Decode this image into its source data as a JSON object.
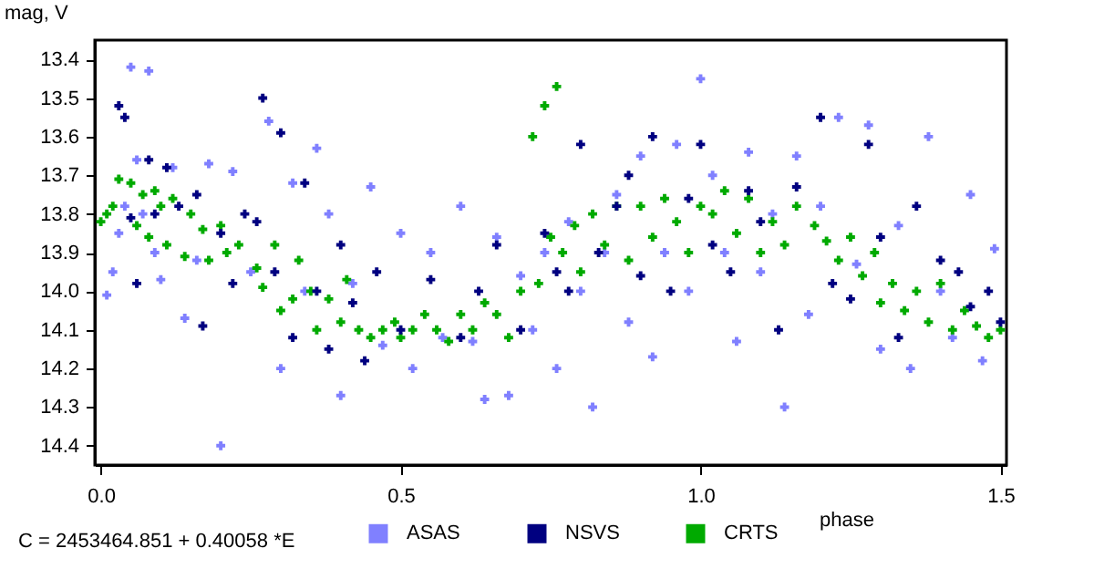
{
  "chart_data": {
    "type": "scatter",
    "xlabel": "phase",
    "ylabel": "mag, V",
    "annotations": [
      "C = 2453464.851 + 0.40058 *E"
    ],
    "xlim": [
      -0.01,
      1.51
    ],
    "ylim": [
      14.45,
      13.35
    ],
    "xticks": [
      {
        "value": 0,
        "label": "0.0"
      },
      0.5,
      {
        "value": 1,
        "label": "1.0"
      },
      1.5
    ],
    "yticks": [
      13.4,
      13.5,
      13.6,
      13.7,
      13.8,
      13.9,
      {
        "value": 14,
        "label": "14.0"
      },
      14.1,
      14.2,
      14.3,
      14.4
    ],
    "grid": false,
    "legend": "bottom",
    "marker": "cross",
    "series": [
      {
        "name": "ASAS",
        "color": "#8080ff",
        "x": [
          0.01,
          0.02,
          0.03,
          0.04,
          0.05,
          0.06,
          0.07,
          0.08,
          0.09,
          0.1,
          0.12,
          0.14,
          0.16,
          0.18,
          0.2,
          0.22,
          0.25,
          0.28,
          0.3,
          0.32,
          0.34,
          0.36,
          0.38,
          0.4,
          0.42,
          0.45,
          0.47,
          0.5,
          0.52,
          0.55,
          0.57,
          0.6,
          0.62,
          0.64,
          0.66,
          0.68,
          0.7,
          0.72,
          0.74,
          0.76,
          0.78,
          0.8,
          0.82,
          0.84,
          0.86,
          0.88,
          0.9,
          0.92,
          0.94,
          0.96,
          0.98,
          1.0,
          1.02,
          1.04,
          1.06,
          1.08,
          1.1,
          1.12,
          1.14,
          1.16,
          1.18,
          1.2,
          1.23,
          1.26,
          1.28,
          1.3,
          1.33,
          1.35,
          1.38,
          1.4,
          1.42,
          1.45,
          1.47,
          1.49
        ],
        "values": [
          14.01,
          13.95,
          13.85,
          13.78,
          13.42,
          13.66,
          13.8,
          13.43,
          13.9,
          13.97,
          13.68,
          14.07,
          13.92,
          13.67,
          14.4,
          13.69,
          13.95,
          13.56,
          14.2,
          13.72,
          14.0,
          13.63,
          13.8,
          14.27,
          13.98,
          13.73,
          14.14,
          13.85,
          14.2,
          13.9,
          14.12,
          13.78,
          14.13,
          14.28,
          13.86,
          14.27,
          13.96,
          14.1,
          13.9,
          14.2,
          13.82,
          14.0,
          14.3,
          13.9,
          13.75,
          14.08,
          13.65,
          14.17,
          13.9,
          13.62,
          14.0,
          13.45,
          13.7,
          13.9,
          14.13,
          13.64,
          13.95,
          13.8,
          14.3,
          13.65,
          14.06,
          13.78,
          13.55,
          13.93,
          13.57,
          14.15,
          13.83,
          14.2,
          13.6,
          14.0,
          14.12,
          13.75,
          14.18,
          13.89
        ]
      },
      {
        "name": "NSVS",
        "color": "#000080",
        "x": [
          0.03,
          0.04,
          0.05,
          0.06,
          0.08,
          0.09,
          0.11,
          0.13,
          0.16,
          0.17,
          0.2,
          0.22,
          0.24,
          0.26,
          0.27,
          0.29,
          0.3,
          0.32,
          0.34,
          0.36,
          0.38,
          0.4,
          0.42,
          0.44,
          0.46,
          0.5,
          0.55,
          0.6,
          0.63,
          0.66,
          0.7,
          0.74,
          0.76,
          0.78,
          0.8,
          0.83,
          0.86,
          0.88,
          0.9,
          0.92,
          0.95,
          0.98,
          1.0,
          1.02,
          1.05,
          1.08,
          1.1,
          1.13,
          1.16,
          1.2,
          1.22,
          1.25,
          1.28,
          1.3,
          1.33,
          1.36,
          1.4,
          1.43,
          1.45,
          1.48,
          1.5
        ],
        "values": [
          13.52,
          13.55,
          13.81,
          13.98,
          13.66,
          13.8,
          13.68,
          13.78,
          13.75,
          14.09,
          13.85,
          13.98,
          13.8,
          13.82,
          13.5,
          13.95,
          13.59,
          14.12,
          13.72,
          14.0,
          14.15,
          13.88,
          14.03,
          14.18,
          13.95,
          14.1,
          13.97,
          14.12,
          14.0,
          13.88,
          14.1,
          13.85,
          13.95,
          14.0,
          13.62,
          13.9,
          13.78,
          13.7,
          13.96,
          13.6,
          14.0,
          13.76,
          13.62,
          13.88,
          13.95,
          13.74,
          13.82,
          14.1,
          13.73,
          13.55,
          13.98,
          14.02,
          13.62,
          13.86,
          14.12,
          13.78,
          13.92,
          13.95,
          14.04,
          14.0,
          14.08
        ]
      },
      {
        "name": "CRTS",
        "color": "#00aa00",
        "x": [
          0.0,
          0.01,
          0.02,
          0.03,
          0.05,
          0.06,
          0.07,
          0.08,
          0.09,
          0.1,
          0.11,
          0.12,
          0.14,
          0.15,
          0.17,
          0.18,
          0.2,
          0.21,
          0.23,
          0.26,
          0.27,
          0.29,
          0.3,
          0.32,
          0.33,
          0.35,
          0.36,
          0.38,
          0.4,
          0.41,
          0.43,
          0.45,
          0.47,
          0.49,
          0.5,
          0.52,
          0.54,
          0.56,
          0.58,
          0.6,
          0.62,
          0.64,
          0.66,
          0.68,
          0.7,
          0.72,
          0.73,
          0.74,
          0.75,
          0.76,
          0.77,
          0.79,
          0.8,
          0.82,
          0.84,
          0.86,
          0.88,
          0.9,
          0.92,
          0.94,
          0.96,
          0.98,
          1.0,
          1.02,
          1.04,
          1.06,
          1.08,
          1.1,
          1.12,
          1.14,
          1.16,
          1.19,
          1.21,
          1.23,
          1.25,
          1.27,
          1.29,
          1.3,
          1.32,
          1.34,
          1.36,
          1.38,
          1.4,
          1.42,
          1.44,
          1.46,
          1.48,
          1.5
        ],
        "values": [
          13.82,
          13.8,
          13.78,
          13.71,
          13.72,
          13.83,
          13.75,
          13.86,
          13.74,
          13.78,
          13.88,
          13.76,
          13.91,
          13.8,
          13.84,
          13.92,
          13.83,
          13.9,
          13.88,
          13.94,
          13.99,
          13.88,
          14.05,
          14.02,
          13.92,
          14.0,
          14.1,
          14.02,
          14.08,
          13.97,
          14.1,
          14.12,
          14.1,
          14.08,
          14.12,
          14.1,
          14.06,
          14.1,
          14.13,
          14.06,
          14.1,
          14.03,
          14.06,
          14.12,
          14.0,
          13.6,
          13.98,
          13.52,
          13.86,
          13.47,
          13.9,
          13.83,
          13.95,
          13.8,
          13.88,
          13.78,
          13.92,
          13.78,
          13.86,
          13.76,
          13.82,
          13.9,
          13.78,
          13.8,
          13.74,
          13.85,
          13.76,
          13.9,
          13.82,
          13.88,
          13.78,
          13.83,
          13.87,
          13.92,
          13.86,
          13.96,
          13.9,
          14.03,
          13.98,
          14.05,
          14.0,
          14.08,
          13.98,
          14.1,
          14.05,
          14.09,
          14.12,
          14.1
        ]
      }
    ]
  }
}
